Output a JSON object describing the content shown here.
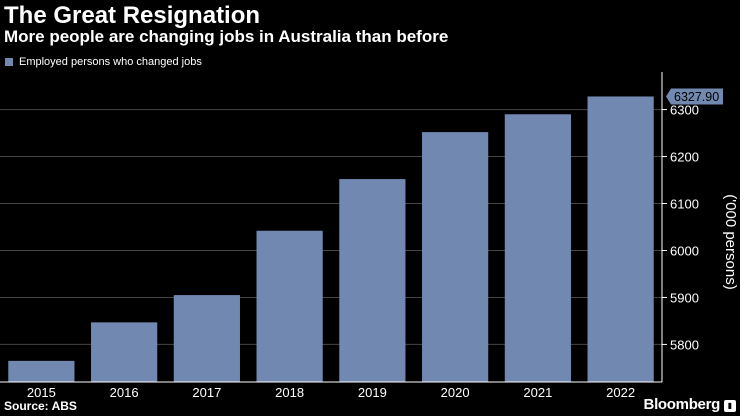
{
  "header": {
    "title": "The Great Resignation",
    "subtitle": "More people are changing jobs in Australia than before"
  },
  "footer": {
    "source": "Source: ABS",
    "brand": "Bloomberg"
  },
  "colors": {
    "background": "#000000",
    "bar": "#7189b0",
    "text": "#ffffff",
    "grid": "#444444"
  },
  "chart_data": {
    "type": "bar",
    "title": "The Great Resignation",
    "subtitle": "More people are changing jobs in Australia than before",
    "categories": [
      "2015",
      "2016",
      "2017",
      "2018",
      "2019",
      "2020",
      "2021",
      "2022"
    ],
    "series": [
      {
        "name": "Employed persons who changed jobs",
        "values": [
          5765,
          5847,
          5905,
          6042,
          6152,
          6252,
          6290,
          6327.9
        ]
      }
    ],
    "xlabel": "",
    "ylabel": "('000 persons)",
    "ylim": [
      5720,
      6380
    ],
    "yticks": [
      "5800",
      "5900",
      "6000",
      "6100",
      "6200",
      "6300"
    ],
    "yaxis_position": "right",
    "grid": true,
    "legend_position": "top-left",
    "last_value_label": "6327.90"
  }
}
